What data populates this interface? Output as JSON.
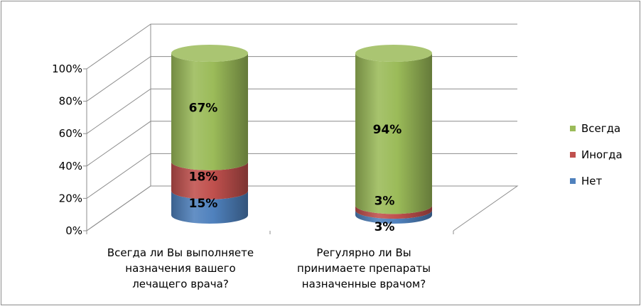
{
  "chart_data": {
    "type": "bar",
    "stacked": true,
    "three_d": true,
    "bar_shape": "cylinder",
    "categories": [
      [
        "Всегда ли Вы выполняете",
        "назначения вашего",
        "лечащего врача?"
      ],
      [
        "Регулярно ли Вы",
        "принимаете препараты",
        "назначенные врачом?"
      ]
    ],
    "series": [
      {
        "name": "Нет",
        "values": [
          15,
          3
        ],
        "labels": [
          "15%",
          "3%"
        ],
        "color": "#4f81bd"
      },
      {
        "name": "Иногда",
        "values": [
          18,
          3
        ],
        "labels": [
          "18%",
          "3%"
        ],
        "color": "#c0504d"
      },
      {
        "name": "Всегда",
        "values": [
          67,
          94
        ],
        "labels": [
          "67%",
          "94%"
        ],
        "color": "#9bbb59"
      }
    ],
    "y_ticks": [
      "0%",
      "20%",
      "40%",
      "60%",
      "80%",
      "100%"
    ],
    "ylim": [
      0,
      100
    ],
    "grid": true,
    "legend": {
      "position": "right",
      "order": [
        "Всегда",
        "Иногда",
        "Нет"
      ]
    }
  }
}
